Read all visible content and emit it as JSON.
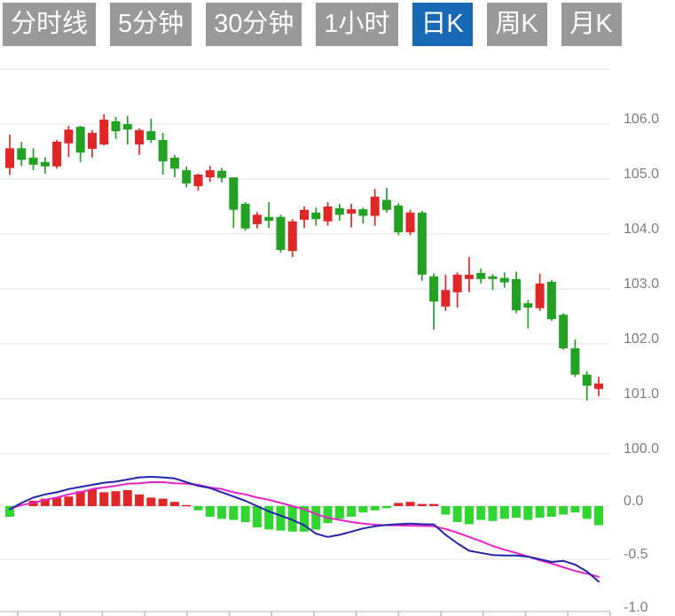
{
  "toolbar": {
    "tab_bg": "#999999",
    "tab_selected_bg": "#1769b5",
    "tab_text_color": "#ffffff",
    "tabs": [
      {
        "label": "分时线",
        "selected": false
      },
      {
        "label": "5分钟",
        "selected": false
      },
      {
        "label": "30分钟",
        "selected": false
      },
      {
        "label": "1小时",
        "selected": false
      },
      {
        "label": "日K",
        "selected": true
      },
      {
        "label": "周K",
        "selected": false
      },
      {
        "label": "月K",
        "selected": false
      }
    ]
  },
  "chart_data": {
    "type": "candlestick+macd",
    "title": "",
    "legend_position": "none",
    "grid": true,
    "up_color": "#e02727",
    "down_color": "#22a122",
    "macd_up_color": "#e02727",
    "macd_down_color": "#30d530",
    "dif_color": "#2424aa",
    "dea_color": "#e622c8",
    "gridline_color": "#e8e8e8",
    "axis_line_color": "#cccccc",
    "axis_text_color": "#7d7d7d",
    "price_axis": {
      "min": 100.0,
      "max": 107.0,
      "ticks": [
        {
          "t": "106.0",
          "v": 106.0
        },
        {
          "t": "105.0",
          "v": 105.0
        },
        {
          "t": "104.0",
          "v": 104.0
        },
        {
          "t": "103.0",
          "v": 103.0
        },
        {
          "t": "102.0",
          "v": 102.0
        },
        {
          "t": "101.0",
          "v": 101.0
        },
        {
          "t": "100.0",
          "v": 100.0
        }
      ],
      "unlabeled_gridlines": [
        107.0
      ]
    },
    "macd_axis": {
      "min": -1.0,
      "max": 0.3,
      "ticks": [
        {
          "t": "0.0",
          "v": 0.0
        },
        {
          "t": "-0.5",
          "v": -0.5
        },
        {
          "t": "-1.0",
          "v": -1.0
        }
      ]
    },
    "candles_format": [
      "open",
      "high",
      "low",
      "close"
    ],
    "candles": [
      [
        105.2,
        105.81,
        105.08,
        105.56
      ],
      [
        105.56,
        105.68,
        105.24,
        105.35
      ],
      [
        105.39,
        105.56,
        105.16,
        105.26
      ],
      [
        105.31,
        105.4,
        105.1,
        105.23
      ],
      [
        105.23,
        105.71,
        105.19,
        105.68
      ],
      [
        105.65,
        105.97,
        105.4,
        105.9
      ],
      [
        105.95,
        105.97,
        105.31,
        105.48
      ],
      [
        105.55,
        105.89,
        105.39,
        105.84
      ],
      [
        105.63,
        106.18,
        105.61,
        106.08
      ],
      [
        106.05,
        106.13,
        105.73,
        105.87
      ],
      [
        106.0,
        106.15,
        105.63,
        105.9
      ],
      [
        105.63,
        105.92,
        105.44,
        105.89
      ],
      [
        105.87,
        106.1,
        105.66,
        105.71
      ],
      [
        105.71,
        105.84,
        105.08,
        105.32
      ],
      [
        105.39,
        105.44,
        105.03,
        105.19
      ],
      [
        105.16,
        105.23,
        104.85,
        104.92
      ],
      [
        104.87,
        105.1,
        104.79,
        105.08
      ],
      [
        105.03,
        105.24,
        104.95,
        105.16
      ],
      [
        105.15,
        105.2,
        104.94,
        105.02
      ],
      [
        105.03,
        105.03,
        104.11,
        104.44
      ],
      [
        104.55,
        104.58,
        104.06,
        104.1
      ],
      [
        104.18,
        104.4,
        104.1,
        104.35
      ],
      [
        104.31,
        104.58,
        104.11,
        104.24
      ],
      [
        104.31,
        104.35,
        103.66,
        103.71
      ],
      [
        103.69,
        104.27,
        103.58,
        104.23
      ],
      [
        104.26,
        104.5,
        104.11,
        104.44
      ],
      [
        104.39,
        104.48,
        104.15,
        104.27
      ],
      [
        104.23,
        104.58,
        104.15,
        104.5
      ],
      [
        104.47,
        104.55,
        104.24,
        104.35
      ],
      [
        104.37,
        104.55,
        104.12,
        104.45
      ],
      [
        104.45,
        104.48,
        104.19,
        104.33
      ],
      [
        104.33,
        104.82,
        104.15,
        104.68
      ],
      [
        104.62,
        104.84,
        104.39,
        104.44
      ],
      [
        104.52,
        104.56,
        103.98,
        104.03
      ],
      [
        104.03,
        104.44,
        103.98,
        104.39
      ],
      [
        104.39,
        104.42,
        103.15,
        103.26
      ],
      [
        103.23,
        103.28,
        102.26,
        102.77
      ],
      [
        102.68,
        103.26,
        102.6,
        102.98
      ],
      [
        102.94,
        103.3,
        102.66,
        103.26
      ],
      [
        103.18,
        103.58,
        102.94,
        103.26
      ],
      [
        103.29,
        103.37,
        103.1,
        103.18
      ],
      [
        103.23,
        103.27,
        102.98,
        103.18
      ],
      [
        103.2,
        103.3,
        103.02,
        103.12
      ],
      [
        103.18,
        103.31,
        102.56,
        102.61
      ],
      [
        102.74,
        102.8,
        102.28,
        102.66
      ],
      [
        102.65,
        103.28,
        102.6,
        103.1
      ],
      [
        103.13,
        103.16,
        102.42,
        102.45
      ],
      [
        102.53,
        102.56,
        101.89,
        101.92
      ],
      [
        101.92,
        102.08,
        101.4,
        101.44
      ],
      [
        101.44,
        101.5,
        100.97,
        101.24
      ],
      [
        101.18,
        101.4,
        101.05,
        101.28
      ]
    ],
    "macd_hist": [
      -0.1,
      0.0,
      0.05,
      0.07,
      0.08,
      0.09,
      0.14,
      0.16,
      0.13,
      0.14,
      0.15,
      0.11,
      0.08,
      0.07,
      0.04,
      0.01,
      -0.04,
      -0.1,
      -0.12,
      -0.13,
      -0.15,
      -0.2,
      -0.22,
      -0.23,
      -0.24,
      -0.24,
      -0.22,
      -0.16,
      -0.12,
      -0.1,
      -0.06,
      -0.04,
      -0.02,
      0.03,
      0.04,
      0.02,
      0.02,
      -0.08,
      -0.15,
      -0.17,
      -0.13,
      -0.14,
      -0.12,
      -0.11,
      -0.13,
      -0.11,
      -0.1,
      -0.08,
      -0.06,
      -0.12,
      -0.18
    ],
    "dif": [
      -0.03,
      0.03,
      0.08,
      0.11,
      0.13,
      0.16,
      0.18,
      0.2,
      0.22,
      0.23,
      0.25,
      0.27,
      0.275,
      0.27,
      0.26,
      0.225,
      0.19,
      0.17,
      0.13,
      0.09,
      0.05,
      0.0,
      -0.05,
      -0.09,
      -0.13,
      -0.18,
      -0.26,
      -0.29,
      -0.27,
      -0.24,
      -0.21,
      -0.19,
      -0.177,
      -0.17,
      -0.165,
      -0.17,
      -0.172,
      -0.27,
      -0.35,
      -0.42,
      -0.44,
      -0.46,
      -0.465,
      -0.465,
      -0.475,
      -0.5,
      -0.525,
      -0.515,
      -0.55,
      -0.615,
      -0.71
    ],
    "dea": [
      -0.025,
      0.01,
      0.03,
      0.06,
      0.08,
      0.11,
      0.13,
      0.16,
      0.175,
      0.19,
      0.21,
      0.215,
      0.225,
      0.225,
      0.215,
      0.21,
      0.2,
      0.175,
      0.16,
      0.13,
      0.11,
      0.08,
      0.06,
      0.03,
      0.0,
      -0.03,
      -0.075,
      -0.11,
      -0.13,
      -0.15,
      -0.165,
      -0.175,
      -0.18,
      -0.182,
      -0.184,
      -0.186,
      -0.19,
      -0.215,
      -0.25,
      -0.29,
      -0.33,
      -0.375,
      -0.41,
      -0.44,
      -0.475,
      -0.51,
      -0.54,
      -0.575,
      -0.61,
      -0.635,
      -0.665
    ]
  }
}
